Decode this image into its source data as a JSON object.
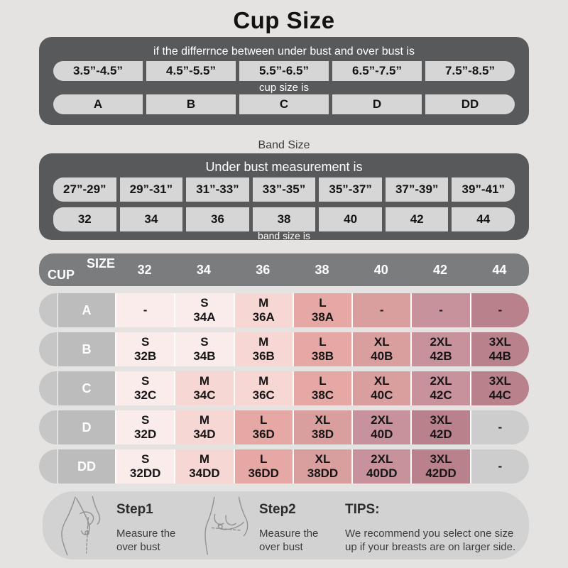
{
  "title": "Cup Size",
  "cup_table": {
    "header": "if the differrnce between under bust and over bust is",
    "ranges": [
      "3.5”-4.5”",
      "4.5”-5.5”",
      "5.5”-6.5”",
      "6.5”-7.5”",
      "7.5”-8.5”"
    ],
    "subheader": "cup size is",
    "cups": [
      "A",
      "B",
      "C",
      "D",
      "DD"
    ]
  },
  "band_section": {
    "title": "Band Size",
    "header": "Under bust measurement is",
    "ranges": [
      "27”-29”",
      "29”-31”",
      "31”-33”",
      "33”-35”",
      "35”-37”",
      "37”-39”",
      "39”-41”"
    ],
    "sizes": [
      "32",
      "34",
      "36",
      "38",
      "40",
      "42",
      "44"
    ],
    "footer": "band size is"
  },
  "matrix": {
    "corner_top": "SIZE",
    "corner_bottom": "CUP",
    "columns": [
      "32",
      "34",
      "36",
      "38",
      "40",
      "42",
      "44"
    ],
    "rows": [
      {
        "cup": "A",
        "cells": [
          {
            "size": "-",
            "code": "",
            "tone": "s"
          },
          {
            "size": "S",
            "code": "34A",
            "tone": "s"
          },
          {
            "size": "M",
            "code": "36A",
            "tone": "m"
          },
          {
            "size": "L",
            "code": "38A",
            "tone": "l"
          },
          {
            "size": "-",
            "code": "",
            "tone": "xl"
          },
          {
            "size": "-",
            "code": "",
            "tone": "xxl"
          },
          {
            "size": "-",
            "code": "",
            "tone": "xxxl"
          }
        ]
      },
      {
        "cup": "B",
        "cells": [
          {
            "size": "S",
            "code": "32B",
            "tone": "s"
          },
          {
            "size": "S",
            "code": "34B",
            "tone": "s"
          },
          {
            "size": "M",
            "code": "36B",
            "tone": "m"
          },
          {
            "size": "L",
            "code": "38B",
            "tone": "l"
          },
          {
            "size": "XL",
            "code": "40B",
            "tone": "xl"
          },
          {
            "size": "2XL",
            "code": "42B",
            "tone": "xxl"
          },
          {
            "size": "3XL",
            "code": "44B",
            "tone": "xxxl"
          }
        ]
      },
      {
        "cup": "C",
        "cells": [
          {
            "size": "S",
            "code": "32C",
            "tone": "s"
          },
          {
            "size": "M",
            "code": "34C",
            "tone": "m"
          },
          {
            "size": "M",
            "code": "36C",
            "tone": "m"
          },
          {
            "size": "L",
            "code": "38C",
            "tone": "l"
          },
          {
            "size": "XL",
            "code": "40C",
            "tone": "xl"
          },
          {
            "size": "2XL",
            "code": "42C",
            "tone": "xxl"
          },
          {
            "size": "3XL",
            "code": "44C",
            "tone": "xxxl"
          }
        ]
      },
      {
        "cup": "D",
        "cells": [
          {
            "size": "S",
            "code": "32D",
            "tone": "s"
          },
          {
            "size": "M",
            "code": "34D",
            "tone": "m"
          },
          {
            "size": "L",
            "code": "36D",
            "tone": "l"
          },
          {
            "size": "XL",
            "code": "38D",
            "tone": "xl"
          },
          {
            "size": "2XL",
            "code": "40D",
            "tone": "xxl"
          },
          {
            "size": "3XL",
            "code": "42D",
            "tone": "xxxl"
          },
          {
            "size": "-",
            "code": "",
            "tone": "na"
          }
        ]
      },
      {
        "cup": "DD",
        "cells": [
          {
            "size": "S",
            "code": "32DD",
            "tone": "s"
          },
          {
            "size": "M",
            "code": "34DD",
            "tone": "m"
          },
          {
            "size": "L",
            "code": "36DD",
            "tone": "l"
          },
          {
            "size": "XL",
            "code": "38DD",
            "tone": "xl"
          },
          {
            "size": "2XL",
            "code": "40DD",
            "tone": "xxl"
          },
          {
            "size": "3XL",
            "code": "42DD",
            "tone": "xxxl"
          },
          {
            "size": "-",
            "code": "",
            "tone": "na"
          }
        ]
      }
    ]
  },
  "palette": {
    "s": "#fbecec",
    "m": "#f7d7d3",
    "l": "#e6a8a5",
    "xl": "#d99f9e",
    "xxl": "#c7929b",
    "xxxl": "#b8818b",
    "na": "#cdcdcd",
    "dark_bar": "#58595b",
    "matrix_bar": "#7b7c7e",
    "cell_gray": "#d6d6d6"
  },
  "footer": {
    "step1_title": "Step1",
    "step1_text": "Measure the over bust",
    "step2_title": "Step2",
    "step2_text": "Measure the over bust",
    "tips_title": "TIPS:",
    "tips_text": "We recommend you select one size up if your breasts are on larger side."
  }
}
